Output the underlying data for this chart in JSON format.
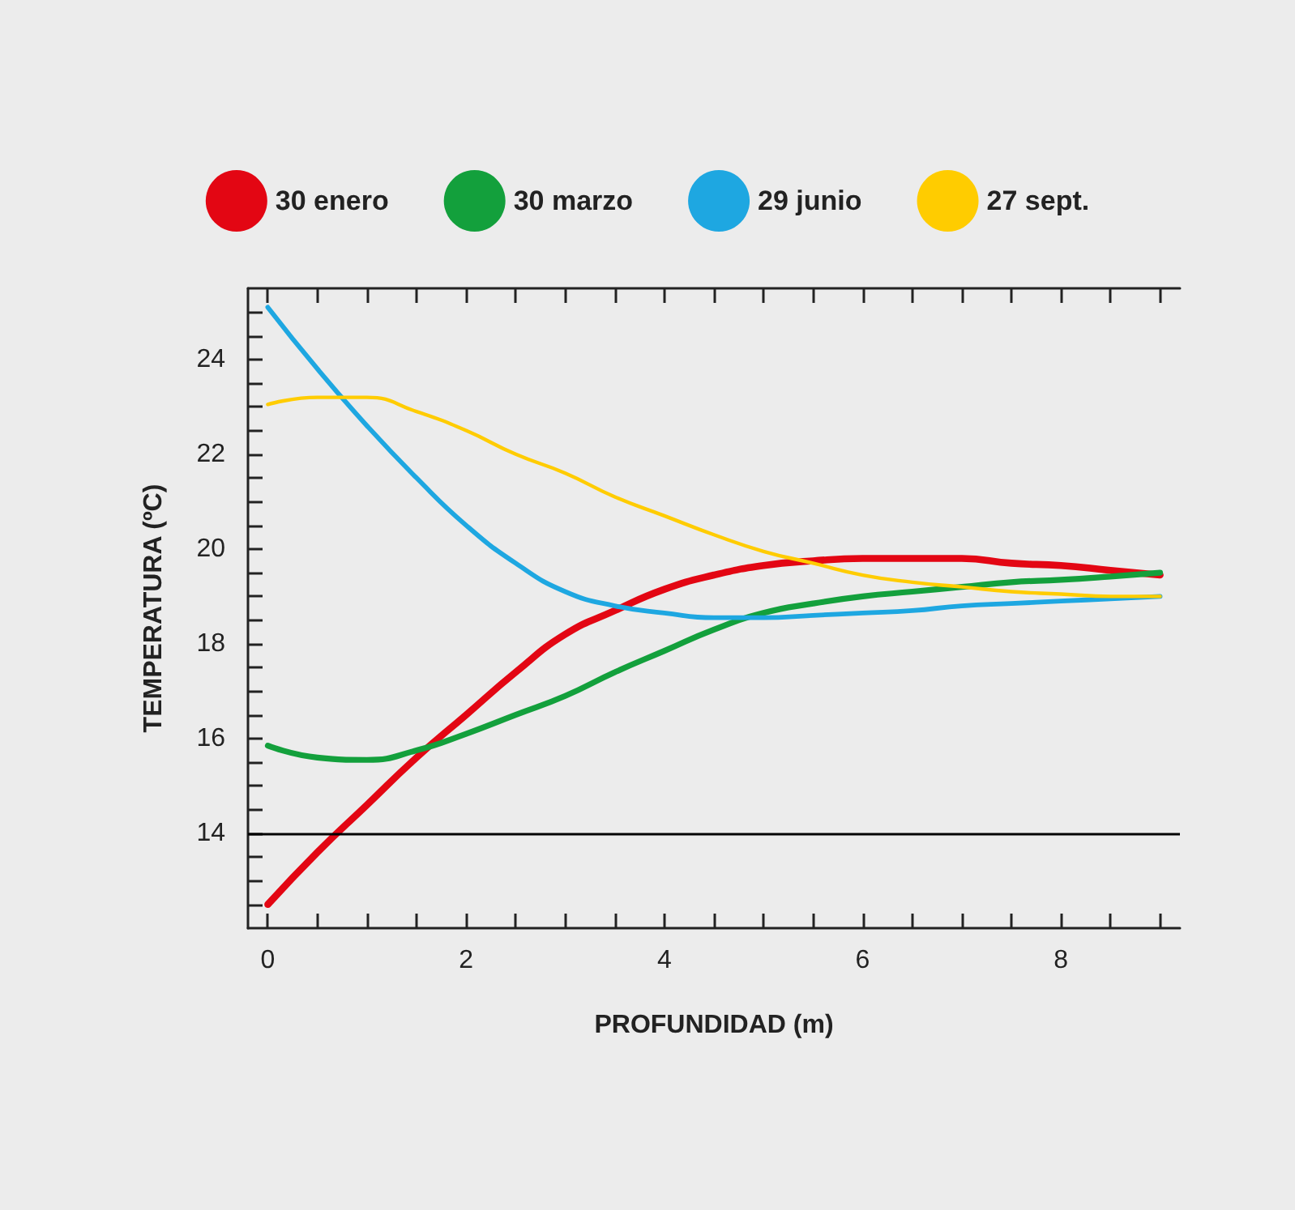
{
  "chart_data": {
    "type": "line",
    "xlabel": "PROFUNDIDAD (m)",
    "ylabel": "TEMPERATURA (ºC)",
    "x": [
      0,
      0.5,
      1,
      1.5,
      2,
      2.5,
      3,
      3.5,
      4,
      4.5,
      5,
      5.5,
      6,
      6.5,
      7,
      7.5,
      8,
      8.5,
      9
    ],
    "series": [
      {
        "name": "30 enero",
        "color": "#e30613",
        "values": [
          12.5,
          13.6,
          14.6,
          15.6,
          16.5,
          17.4,
          18.2,
          18.7,
          19.15,
          19.45,
          19.65,
          19.75,
          19.8,
          19.8,
          19.8,
          19.7,
          19.65,
          19.55,
          19.45
        ]
      },
      {
        "name": "30 marzo",
        "color": "#13a03c",
        "values": [
          15.85,
          15.6,
          15.55,
          15.75,
          16.1,
          16.5,
          16.9,
          17.4,
          17.85,
          18.3,
          18.65,
          18.85,
          19.0,
          19.1,
          19.2,
          19.3,
          19.35,
          19.42,
          19.5
        ]
      },
      {
        "name": "29 junio",
        "color": "#1ea7e1",
        "values": [
          25.1,
          23.8,
          22.6,
          21.5,
          20.5,
          19.7,
          19.1,
          18.8,
          18.65,
          18.55,
          18.55,
          18.6,
          18.65,
          18.7,
          18.8,
          18.85,
          18.9,
          18.95,
          19.0
        ]
      },
      {
        "name": "27 sept.",
        "color": "#ffcc00",
        "values": [
          23.05,
          23.2,
          23.2,
          22.9,
          22.5,
          22.0,
          21.6,
          21.1,
          20.7,
          20.3,
          19.95,
          19.7,
          19.45,
          19.3,
          19.2,
          19.1,
          19.05,
          19.0,
          19.0
        ]
      }
    ],
    "xlim": [
      -0.2,
      9.2
    ],
    "xticks": [
      0,
      {
        "value": 0.5,
        "label": null
      },
      {
        "value": 1,
        "label": null
      },
      {
        "value": 1.5,
        "label": null
      },
      2,
      {
        "value": 2.5,
        "label": null
      },
      {
        "value": 3,
        "label": null
      },
      {
        "value": 3.5,
        "label": null
      },
      4,
      {
        "value": 4.5,
        "label": null
      },
      {
        "value": 5,
        "label": null
      },
      {
        "value": 5.5,
        "label": null
      },
      6,
      {
        "value": 6.5,
        "label": null
      },
      {
        "value": 7,
        "label": null
      },
      {
        "value": 7.5,
        "label": null
      },
      8,
      {
        "value": 8.5,
        "label": null
      },
      {
        "value": 9,
        "label": null
      }
    ],
    "ylim": [
      12,
      25.5
    ],
    "yticks": [
      {
        "value": 12.5,
        "label": null
      },
      {
        "value": 13,
        "label": null
      },
      {
        "value": 13.5,
        "label": null
      },
      14,
      {
        "value": 14.5,
        "label": null
      },
      {
        "value": 15,
        "label": null
      },
      {
        "value": 15.5,
        "label": null
      },
      16,
      {
        "value": 16.5,
        "label": null
      },
      {
        "value": 17,
        "label": null
      },
      {
        "value": 17.5,
        "label": null
      },
      18,
      {
        "value": 18.5,
        "label": null
      },
      {
        "value": 19,
        "label": null
      },
      {
        "value": 19.5,
        "label": null
      },
      20,
      {
        "value": 20.5,
        "label": null
      },
      {
        "value": 21,
        "label": null
      },
      {
        "value": 21.5,
        "label": null
      },
      22,
      {
        "value": 22.5,
        "label": null
      },
      {
        "value": 23,
        "label": null
      },
      {
        "value": 23.5,
        "label": null
      },
      24,
      {
        "value": 24.5,
        "label": null
      },
      {
        "value": 25,
        "label": null
      }
    ],
    "ref_lines": [
      {
        "axis": "y",
        "value": 14,
        "color": "#000000",
        "line_style": "solid"
      }
    ],
    "legend": "top",
    "grid": false,
    "marker": "none",
    "line_style": "solid"
  }
}
